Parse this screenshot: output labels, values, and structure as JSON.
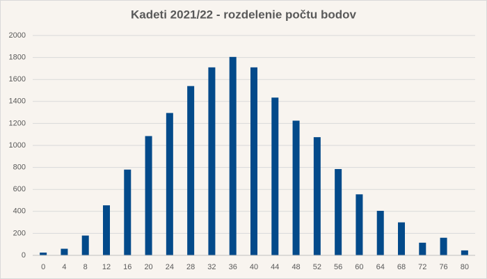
{
  "chart_data": {
    "type": "bar",
    "title": "Kadeti 2021/22 - rozdelenie počtu bodov",
    "categories": [
      "0",
      "4",
      "8",
      "12",
      "16",
      "20",
      "24",
      "28",
      "32",
      "36",
      "40",
      "44",
      "48",
      "52",
      "56",
      "60",
      "64",
      "68",
      "72",
      "76",
      "80"
    ],
    "values": [
      25,
      60,
      180,
      455,
      780,
      1085,
      1295,
      1540,
      1710,
      1805,
      1710,
      1435,
      1225,
      1075,
      785,
      555,
      405,
      300,
      115,
      160,
      45
    ],
    "color": "#034a8a",
    "ylim": [
      0,
      2000
    ],
    "yticks": [
      0,
      200,
      400,
      600,
      800,
      1000,
      1200,
      1400,
      1600,
      1800,
      2000
    ],
    "grid": true
  }
}
